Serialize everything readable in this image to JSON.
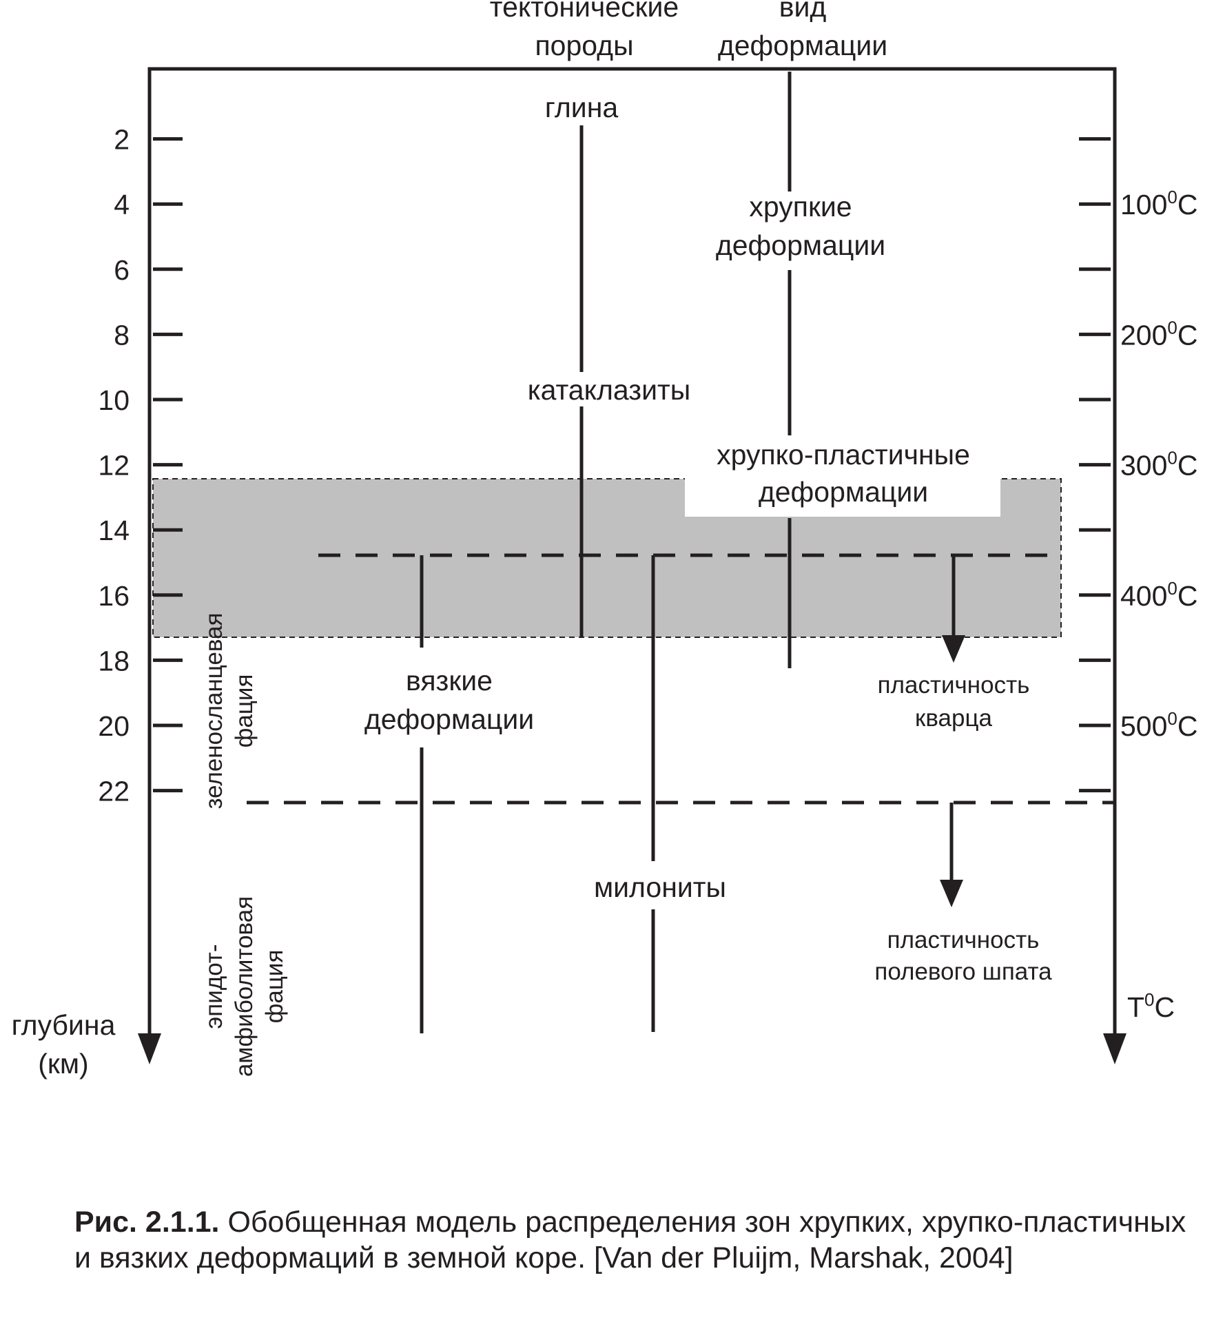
{
  "headers": {
    "rocks": [
      "тектонические",
      "породы"
    ],
    "deformation": [
      "вид",
      "деформации"
    ]
  },
  "axes": {
    "depth_label": [
      "глубина",
      "(км)"
    ],
    "depth_ticks": [
      "2",
      "4",
      "6",
      "8",
      "10",
      "12",
      "14",
      "16",
      "18",
      "20",
      "22"
    ],
    "temp_label_base": "T",
    "temp_label_sup": "0",
    "temp_label_unit": "C",
    "temp_ticks": [
      {
        "value": "100",
        "sup": "0",
        "unit": "C",
        "depth": 4
      },
      {
        "value": "200",
        "sup": "0",
        "unit": "C",
        "depth": 8
      },
      {
        "value": "300",
        "sup": "0",
        "unit": "C",
        "depth": 12
      },
      {
        "value": "400",
        "sup": "0",
        "unit": "C",
        "depth": 16
      },
      {
        "value": "500",
        "sup": "0",
        "unit": "C",
        "depth": 20
      }
    ]
  },
  "labels": {
    "clay": "глина",
    "cataclasites": "катаклазиты",
    "mylonites": "милониты",
    "brittle": [
      "хрупкие",
      "деформации"
    ],
    "brittle_ductile": [
      "хрупко-пластичные",
      "деформации"
    ],
    "viscous": [
      "вязкие",
      "деформации"
    ],
    "quartz": [
      "пластичность",
      "кварца"
    ],
    "feldspar": [
      "пластичность",
      "полевого шпата"
    ],
    "greenschist": [
      "зеленосланцевая",
      "фация"
    ],
    "epidote": [
      "эпидот-",
      "амфиболитовая",
      "фация"
    ]
  },
  "caption": {
    "label": "Рис. 2.1.1.",
    "text": " Обобщенная модель распределения зон хрупких, хрупко-пластичных и вязких деформаций в земной коре. [Van der Pluijm, Marshak, 2004]"
  },
  "colors": {
    "ink": "#231f20",
    "zone_fill": "#c0c0c0"
  }
}
